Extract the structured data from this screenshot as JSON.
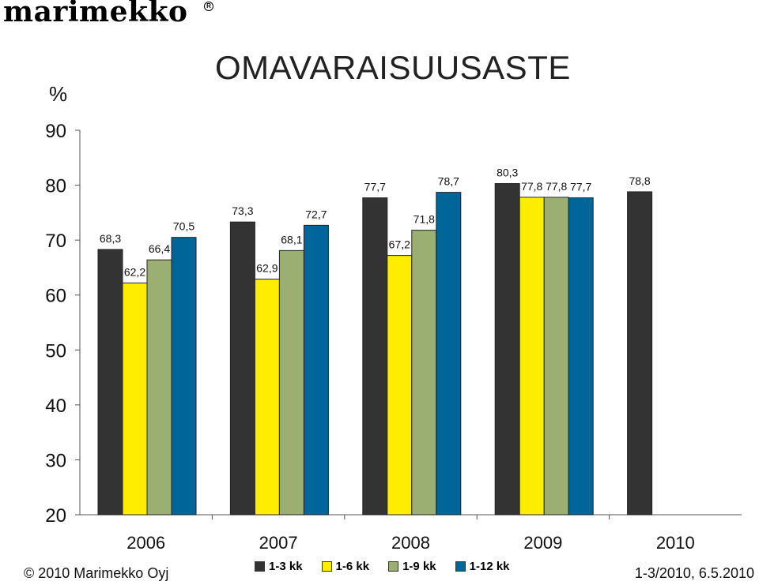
{
  "brand": {
    "logo_text": "marimekko",
    "registered_mark": "R"
  },
  "chart_data": {
    "type": "bar",
    "title": "OMAVARAISUUSASTE",
    "ylabel": "%",
    "ylim": [
      20,
      90
    ],
    "yticks": [
      "20",
      "30",
      "40",
      "50",
      "60",
      "70",
      "80",
      "90"
    ],
    "categories": [
      "2006",
      "2007",
      "2008",
      "2009",
      "2010"
    ],
    "series": [
      {
        "name": "1-3 kk",
        "color": "#333333",
        "values": [
          68.3,
          73.3,
          77.7,
          80.3,
          78.8
        ],
        "labels": [
          "68,3",
          "73,3",
          "77,7",
          "80,3",
          "78,8"
        ]
      },
      {
        "name": "1-6 kk",
        "color": "#ffed00",
        "values": [
          62.2,
          62.9,
          67.2,
          77.8,
          null
        ],
        "labels": [
          "62,2",
          "62,9",
          "67,2",
          "77,8",
          ""
        ]
      },
      {
        "name": "1-9 kk",
        "color": "#9caf72",
        "values": [
          66.4,
          68.1,
          71.8,
          77.8,
          null
        ],
        "labels": [
          "66,4",
          "68,1",
          "71,8",
          "77,8",
          ""
        ]
      },
      {
        "name": "1-12 kk",
        "color": "#006699",
        "values": [
          70.5,
          72.7,
          78.7,
          77.7,
          null
        ],
        "labels": [
          "70,5",
          "72,7",
          "78,7",
          "77,7",
          ""
        ]
      }
    ],
    "grid": false,
    "legend_position": "bottom"
  },
  "footer": {
    "copyright": "© 2010 Marimekko Oyj",
    "date": "1-3/2010, 6.5.2010"
  }
}
